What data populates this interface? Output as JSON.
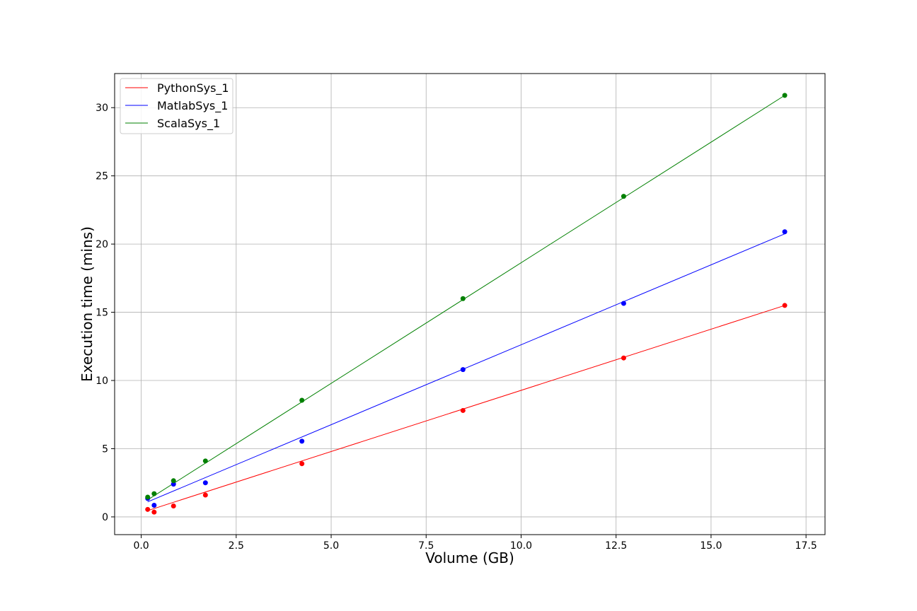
{
  "chart_data": {
    "type": "scatter",
    "title": "",
    "xlabel": "Volume (GB)",
    "ylabel": "Execution time (mins)",
    "xlim": [
      -0.7,
      18.0
    ],
    "ylim": [
      -1.3,
      32.5
    ],
    "xticks": [
      0.0,
      2.5,
      5.0,
      7.5,
      10.0,
      12.5,
      15.0,
      17.5
    ],
    "xtick_labels": [
      "0.0",
      "2.5",
      "5.0",
      "7.5",
      "10.0",
      "12.5",
      "15.0",
      "17.5"
    ],
    "yticks": [
      0,
      5,
      10,
      15,
      20,
      25,
      30
    ],
    "ytick_labels": [
      "0",
      "5",
      "10",
      "15",
      "20",
      "25",
      "30"
    ],
    "grid": true,
    "legend": "top-left",
    "x": [
      0.17,
      0.34,
      0.85,
      1.69,
      4.23,
      8.47,
      12.7,
      16.94
    ],
    "series": [
      {
        "name": "PythonSys_1",
        "color": "#ff0000",
        "values": [
          0.55,
          0.35,
          0.8,
          1.6,
          3.9,
          7.8,
          11.65,
          15.5
        ],
        "fit": [
          [
            0.17,
            0.46
          ],
          [
            16.94,
            15.5
          ]
        ]
      },
      {
        "name": "MatlabSys_1",
        "color": "#0000ff",
        "values": [
          1.35,
          0.85,
          2.4,
          2.5,
          5.55,
          10.8,
          15.65,
          20.9
        ],
        "fit": [
          [
            0.17,
            1.1
          ],
          [
            16.94,
            20.75
          ]
        ]
      },
      {
        "name": "ScalaSys_1",
        "color": "#008000",
        "values": [
          1.45,
          1.7,
          2.65,
          4.1,
          8.55,
          16.0,
          23.5,
          30.9
        ],
        "fit": [
          [
            0.17,
            1.25
          ],
          [
            16.94,
            30.9
          ]
        ]
      }
    ]
  }
}
